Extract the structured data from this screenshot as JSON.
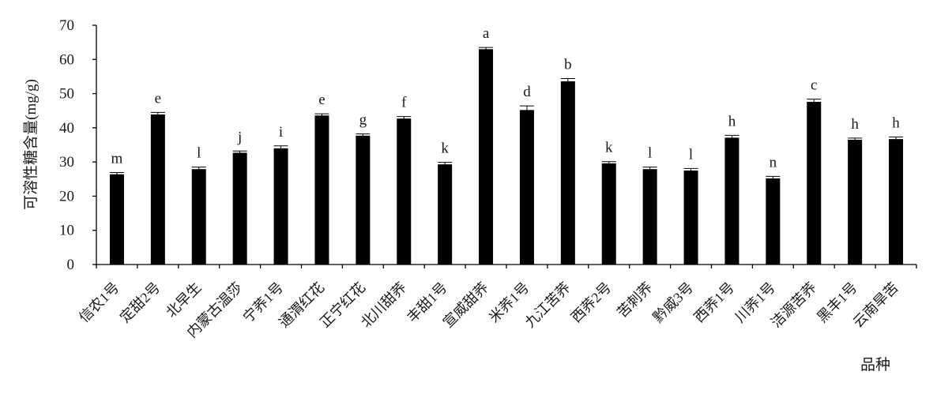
{
  "chart_data": {
    "type": "bar",
    "title": "",
    "ylabel": "可溶性糖含量(mg/g)",
    "xlabel": "品种",
    "ylim": [
      0,
      70
    ],
    "yticks": [
      0,
      10,
      20,
      30,
      40,
      50,
      60,
      70
    ],
    "grid": false,
    "categories": [
      "信农1号",
      "定甜2号",
      "北早生",
      "内蒙古温莎",
      "宁荞1号",
      "通渭红花",
      "正宁红花",
      "北川甜荞",
      "丰甜1号",
      "宣威甜荞",
      "米荞1号",
      "九江苦荞",
      "西荞2号",
      "苦刺荞",
      "黔威3号",
      "西荞1号",
      "川荞1号",
      "洁源苦荞",
      "黑丰1号",
      "云南旱苦"
    ],
    "series": [
      {
        "values": [
          26.4,
          43.9,
          27.9,
          32.7,
          34.0,
          43.6,
          37.7,
          42.7,
          29.3,
          63.0,
          45.2,
          53.6,
          29.6,
          27.9,
          27.5,
          37.1,
          25.2,
          47.6,
          36.5,
          36.7
        ],
        "errors": [
          0.5,
          0.6,
          0.6,
          0.5,
          0.7,
          0.5,
          0.5,
          0.6,
          0.6,
          0.5,
          1.2,
          0.8,
          0.5,
          0.6,
          0.6,
          0.7,
          0.6,
          0.8,
          0.5,
          0.6
        ],
        "labels": [
          "m",
          "e",
          "l",
          "j",
          "i",
          "e",
          "g",
          "f",
          "k",
          "a",
          "d",
          "b",
          "k",
          "l",
          "l",
          "h",
          "n",
          "c",
          "h",
          "h"
        ],
        "color": "#000000"
      }
    ]
  }
}
